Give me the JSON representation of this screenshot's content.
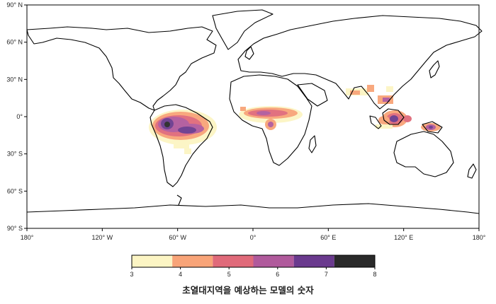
{
  "map": {
    "x_ticks": [
      "180°",
      "120° W",
      "60° W",
      "0°",
      "60° E",
      "120° E",
      "180°"
    ],
    "y_ticks": [
      "90° N",
      "60° N",
      "30° N",
      "0°",
      "30° S",
      "60° S",
      "90° S"
    ]
  },
  "legend": {
    "title": "초열대지역을 예상하는 모델의 숫자",
    "ticks": [
      "3",
      "4",
      "5",
      "6",
      "7",
      "8"
    ],
    "colors": [
      "#fcf5c4",
      "#f8a478",
      "#e06a7a",
      "#b05a9c",
      "#6a3a8e",
      "#2a2a2a"
    ]
  }
}
